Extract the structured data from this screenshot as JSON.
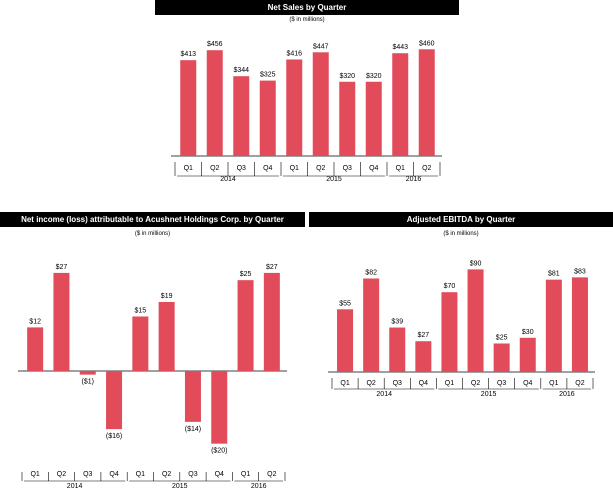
{
  "colors": {
    "bar": "#e14b5a",
    "header_bg": "#000000",
    "header_text": "#ffffff"
  },
  "chart_data": [
    {
      "id": "net-sales",
      "type": "bar",
      "title": "Net Sales by Quarter",
      "subtitle": "($ in millions)",
      "categories": [
        "Q1",
        "Q2",
        "Q3",
        "Q4",
        "Q1",
        "Q2",
        "Q3",
        "Q4",
        "Q1",
        "Q2"
      ],
      "values": [
        413,
        456,
        344,
        325,
        416,
        447,
        320,
        320,
        443,
        460
      ],
      "labels": [
        "$413",
        "$456",
        "$344",
        "$325",
        "$416",
        "$447",
        "$320",
        "$320",
        "$443",
        "$460"
      ],
      "groups": [
        {
          "label": "2014",
          "start": 0,
          "end": 3
        },
        {
          "label": "2015",
          "start": 4,
          "end": 7
        },
        {
          "label": "2016",
          "start": 8,
          "end": 9
        }
      ],
      "ylim": [
        0,
        500
      ]
    },
    {
      "id": "net-income",
      "type": "bar",
      "title": "Net income (loss) attributable to Acushnet Holdings Corp. by Quarter",
      "subtitle": "($ in millions)",
      "categories": [
        "Q1",
        "Q2",
        "Q3",
        "Q4",
        "Q1",
        "Q2",
        "Q3",
        "Q4",
        "Q1",
        "Q2"
      ],
      "values": [
        12,
        27,
        -1,
        -16,
        15,
        19,
        -14,
        -20,
        25,
        27
      ],
      "labels": [
        "$12",
        "$27",
        "($1)",
        "($16)",
        "$15",
        "$19",
        "($14)",
        "($20)",
        "$25",
        "$27"
      ],
      "groups": [
        {
          "label": "2014",
          "start": 0,
          "end": 3
        },
        {
          "label": "2015",
          "start": 4,
          "end": 7
        },
        {
          "label": "2016",
          "start": 8,
          "end": 9
        }
      ],
      "ylim": [
        -22,
        30
      ]
    },
    {
      "id": "adjusted-ebitda",
      "type": "bar",
      "title": "Adjusted EBITDA by Quarter",
      "subtitle": "($ in millions)",
      "categories": [
        "Q1",
        "Q2",
        "Q3",
        "Q4",
        "Q1",
        "Q2",
        "Q3",
        "Q4",
        "Q1",
        "Q2"
      ],
      "values": [
        55,
        82,
        39,
        27,
        70,
        90,
        25,
        30,
        81,
        83
      ],
      "labels": [
        "$55",
        "$82",
        "$39",
        "$27",
        "$70",
        "$90",
        "$25",
        "$30",
        "$81",
        "$83"
      ],
      "groups": [
        {
          "label": "2014",
          "start": 0,
          "end": 3
        },
        {
          "label": "2015",
          "start": 4,
          "end": 7
        },
        {
          "label": "2016",
          "start": 8,
          "end": 9
        }
      ],
      "ylim": [
        0,
        100
      ]
    }
  ]
}
